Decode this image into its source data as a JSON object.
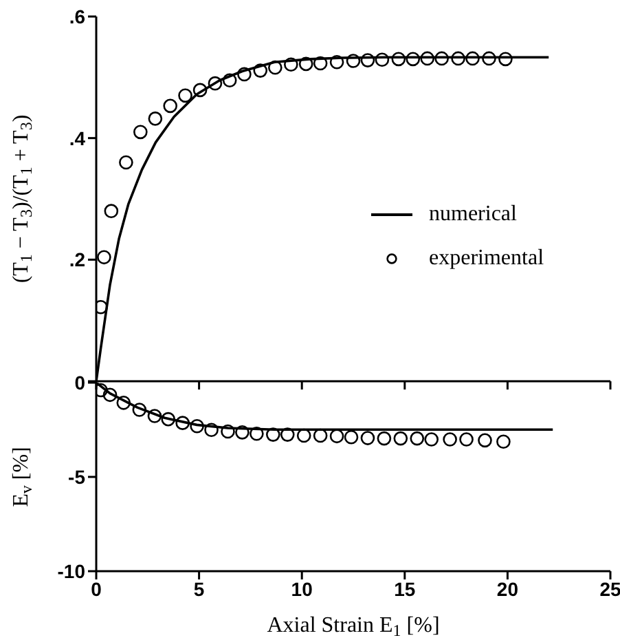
{
  "chart_data": [
    {
      "type": "line",
      "ylabel": "(T$_{1}$ − T$_{3}$)/(T$_{1}$ + T$_{3}$)",
      "xlim": [
        0,
        25
      ],
      "xticks": [
        0,
        5,
        10,
        15,
        20,
        25
      ],
      "ylim": [
        0,
        0.6
      ],
      "yticks": [
        {
          "value": 0,
          "label": null
        },
        {
          "value": 0.2,
          "label": ".2"
        },
        {
          "value": 0.4,
          "label": ".4"
        },
        {
          "value": 0.6,
          "label": ".6"
        }
      ],
      "tick_labels": "y",
      "legend": "right",
      "grid": false,
      "series": [
        {
          "name": "numerical",
          "color": "#000000",
          "marker": "none",
          "line_style": "solid",
          "x": [
            0,
            0.22,
            0.67,
            1.11,
            1.56,
            2.22,
            2.89,
            3.78,
            4.89,
            6,
            7.1,
            8.67,
            10.4,
            12,
            14,
            16,
            18,
            20,
            22
          ],
          "values": [
            0,
            0.054,
            0.159,
            0.235,
            0.291,
            0.348,
            0.393,
            0.435,
            0.472,
            0.495,
            0.51,
            0.525,
            0.53,
            0.532,
            0.533,
            0.533,
            0.533,
            0.533,
            0.533
          ]
        },
        {
          "name": "experimental",
          "type": "scatter",
          "color": "#000000",
          "marker": "circle",
          "x": [
            0.22,
            0.38,
            0.73,
            1.45,
            2.15,
            2.87,
            3.6,
            4.33,
            5.05,
            5.78,
            6.49,
            7.2,
            7.98,
            8.7,
            9.47,
            10.2,
            10.9,
            11.7,
            12.5,
            13.2,
            13.9,
            14.7,
            15.4,
            16.1,
            16.8,
            17.6,
            18.3,
            19.1,
            19.9
          ],
          "values": [
            0.122,
            0.204,
            0.28,
            0.36,
            0.41,
            0.432,
            0.453,
            0.47,
            0.479,
            0.49,
            0.495,
            0.505,
            0.511,
            0.516,
            0.521,
            0.522,
            0.523,
            0.525,
            0.527,
            0.528,
            0.529,
            0.53,
            0.53,
            0.531,
            0.531,
            0.531,
            0.531,
            0.531,
            0.53
          ]
        }
      ]
    },
    {
      "type": "line",
      "xlabel": "Axial Strain  E$_{1}$  [%]",
      "ylabel": "E$_{v}$  [%]",
      "xlim": [
        0,
        25
      ],
      "xticks": [
        0,
        5,
        10,
        15,
        20,
        25
      ],
      "ylim": [
        -10,
        0
      ],
      "yticks": [
        0,
        -5,
        -10
      ],
      "grid": false,
      "series": [
        {
          "color": "#000000",
          "marker": "none",
          "line_style": "solid",
          "x": [
            0,
            0.67,
            2,
            3.33,
            4.89,
            6.4,
            8.67,
            12,
            16,
            20,
            22.2
          ],
          "values": [
            0,
            -0.57,
            -1.32,
            -1.87,
            -2.24,
            -2.41,
            -2.49,
            -2.49,
            -2.49,
            -2.49,
            -2.49
          ]
        },
        {
          "type": "scatter",
          "color": "#000000",
          "marker": "circle",
          "x": [
            0.22,
            0.67,
            1.33,
            2.1,
            2.84,
            3.5,
            4.2,
            4.9,
            5.6,
            6.4,
            7.1,
            7.8,
            8.6,
            9.3,
            10.1,
            10.9,
            11.7,
            12.4,
            13.2,
            14,
            14.8,
            15.6,
            16.3,
            17.2,
            18,
            18.9,
            19.8
          ],
          "values": [
            -0.4,
            -0.65,
            -1.07,
            -1.44,
            -1.77,
            -1.94,
            -2.14,
            -2.31,
            -2.51,
            -2.59,
            -2.64,
            -2.71,
            -2.76,
            -2.76,
            -2.81,
            -2.81,
            -2.84,
            -2.89,
            -2.94,
            -2.96,
            -2.96,
            -2.96,
            -3.01,
            -3.01,
            -3.01,
            -3.06,
            -3.13
          ]
        }
      ]
    }
  ]
}
